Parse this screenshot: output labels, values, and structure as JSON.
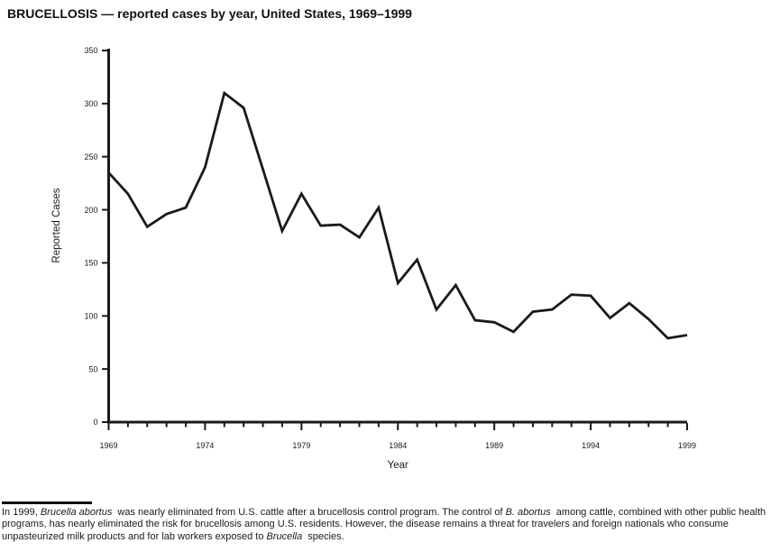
{
  "title": "BRUCELLOSIS — reported cases by year, United States, 1969–1999",
  "chart_data": {
    "type": "line",
    "title": "BRUCELLOSIS — reported cases by year, United States, 1969–1999",
    "xlabel": "Year",
    "ylabel": "Reported Cases",
    "ylim": [
      0,
      350
    ],
    "y_ticks": [
      0,
      50,
      100,
      150,
      200,
      250,
      300,
      350
    ],
    "x_major_tick_labels": [
      "1969",
      "1974",
      "1979",
      "1984",
      "1989",
      "1994",
      "1999"
    ],
    "grid": false,
    "legend": "none",
    "line_color": "#1a1a1a",
    "x": [
      1969,
      1970,
      1971,
      1972,
      1973,
      1974,
      1975,
      1976,
      1977,
      1978,
      1979,
      1980,
      1981,
      1982,
      1983,
      1984,
      1985,
      1986,
      1987,
      1988,
      1989,
      1990,
      1991,
      1992,
      1993,
      1994,
      1995,
      1996,
      1997,
      1998,
      1999
    ],
    "series": [
      {
        "name": "Reported brucellosis cases",
        "values": [
          235,
          215,
          184,
          196,
          202,
          240,
          310,
          296,
          238,
          180,
          215,
          185,
          186,
          174,
          202,
          131,
          153,
          106,
          129,
          96,
          94,
          85,
          104,
          106,
          120,
          119,
          98,
          112,
          97,
          79,
          82
        ]
      }
    ]
  },
  "footnote": {
    "segments": [
      {
        "t": "In 1999, ",
        "i": false
      },
      {
        "t": "Brucella abortus",
        "i": true
      },
      {
        "t": " was nearly eliminated from U.S. cattle after a brucellosis control program. The control of ",
        "i": false
      },
      {
        "t": "B. abortus",
        "i": true
      },
      {
        "t": " among cattle, combined with other public health programs, has nearly eliminated the risk for brucellosis among U.S. residents. However, the disease remains a threat for travelers and foreign nationals who consume unpasteurized milk products and for lab workers exposed to ",
        "i": false
      },
      {
        "t": "Brucella",
        "i": true
      },
      {
        "t": " species.",
        "i": false
      }
    ]
  }
}
